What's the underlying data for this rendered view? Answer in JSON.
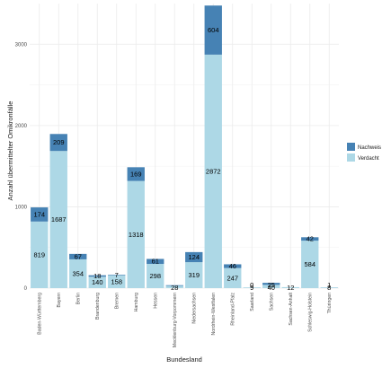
{
  "chart_data": {
    "type": "bar",
    "stacked": true,
    "xlabel": "Bundesland",
    "ylabel": "Anzahl übermittelter Omikronfälle",
    "ylim": [
      0,
      3500
    ],
    "yticks": [
      0,
      1000,
      2000,
      3000
    ],
    "grid": true,
    "legend_position": "right",
    "categories": [
      "Baden-Württemberg",
      "Bayern",
      "Berlin",
      "Brandenburg",
      "Bremen",
      "Hamburg",
      "Hessen",
      "Mecklenburg-Vorpommern",
      "Niedersachsen",
      "Nordrhein-Westfalen",
      "Rheinland-Pfalz",
      "Saarland",
      "Sachsen",
      "Sachsen-Anhalt",
      "Schleswig-Holstein",
      "Thüringen"
    ],
    "series": [
      {
        "name": "Verdacht",
        "color": "#add8e6",
        "values": [
          819,
          1687,
          354,
          140,
          158,
          1318,
          298,
          28,
          319,
          2872,
          247,
          9,
          40,
          12,
          584,
          8
        ]
      },
      {
        "name": "Nachweis",
        "color": "#4682b4",
        "values": [
          174,
          209,
          67,
          18,
          7,
          169,
          61,
          8,
          124,
          604,
          46,
          0,
          25,
          0,
          42,
          1
        ]
      }
    ],
    "labels": {
      "Verdacht": [
        "819",
        "1687",
        "354",
        "140",
        "158",
        "1318",
        "298",
        "28",
        "319",
        "2872",
        "247",
        "9",
        "40",
        "12",
        "584",
        "8"
      ],
      "Nachweis": [
        "174",
        "209",
        "67",
        "18",
        "7",
        "169",
        "61",
        "",
        "124",
        "604",
        "46",
        "0",
        "25",
        "",
        "42",
        "1"
      ]
    },
    "legend": [
      "Nachweis",
      "Verdacht"
    ]
  }
}
